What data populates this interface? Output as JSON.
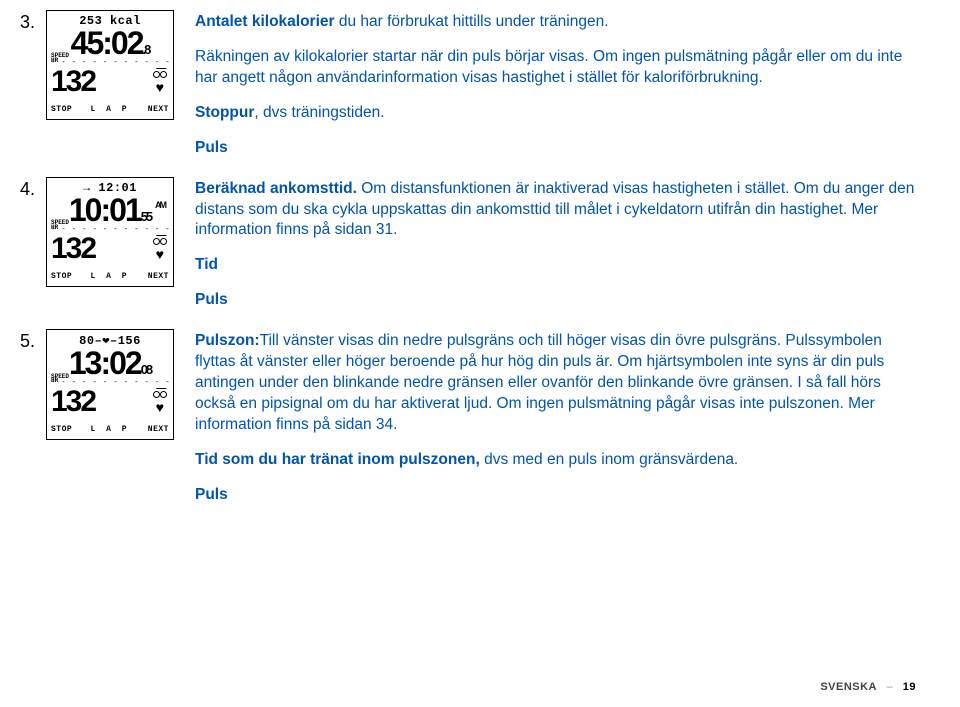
{
  "blocks": [
    {
      "num": "3.",
      "device": {
        "line1": "253 kcal",
        "big": "45:02",
        "bigSub": ".8",
        "hr": "132",
        "bike": true,
        "heart": true,
        "stop": "STOP",
        "lap": "L A P",
        "next": "NEXT",
        "speedhr": "SPEED\nHR"
      },
      "paras": [
        {
          "runs": [
            {
              "t": "Antalet kilokalorier",
              "c": "blue",
              "b": true
            },
            {
              "t": " du har förbrukat hittills under träningen.",
              "c": "blue"
            }
          ]
        },
        {
          "runs": [
            {
              "t": "Räkningen av kilokalorier startar när din puls börjar visas. Om ingen pulsmätning pågår eller om du inte har angett någon användarinformation visas hastighet i stället för kaloriförbrukning.",
              "c": "blue"
            }
          ]
        },
        {
          "runs": [
            {
              "t": "Stoppur",
              "c": "blue",
              "b": true
            },
            {
              "t": ", dvs träningstiden.",
              "c": "blue"
            }
          ]
        },
        {
          "runs": [
            {
              "t": "Puls",
              "c": "blue",
              "b": true
            }
          ]
        }
      ]
    },
    {
      "num": "4.",
      "device": {
        "line1": "→ 12:01",
        "big": "10:01",
        "bigSub": "55",
        "sup": "AM",
        "hr": "132",
        "bike": true,
        "heart": true,
        "stop": "STOP",
        "lap": "L A P",
        "next": "NEXT",
        "speedhr": "SPEED\nHR"
      },
      "paras": [
        {
          "runs": [
            {
              "t": "Beräknad ankomsttid.",
              "c": "blue",
              "b": true
            },
            {
              "t": " Om distansfunktionen är inaktiverad visas hastigheten i stället. Om du anger den distans som du ska cykla uppskattas din ankomsttid till målet i cykeldatorn utifrån din hastighet. Mer information finns på sidan 31.",
              "c": "blue"
            }
          ]
        },
        {
          "runs": [
            {
              "t": "Tid",
              "c": "blue",
              "b": true
            }
          ]
        },
        {
          "runs": [
            {
              "t": "Puls",
              "c": "blue",
              "b": true
            }
          ]
        }
      ]
    },
    {
      "num": "5.",
      "device": {
        "line1": "80–❤–156",
        "big": "13:02",
        "bigSub": "08",
        "hr": "132",
        "bike": true,
        "heart": true,
        "stop": "STOP",
        "lap": "L A P",
        "next": "NEXT",
        "speedhr": "SPEED\nHR"
      },
      "paras": [
        {
          "runs": [
            {
              "t": "Pulszon:",
              "c": "blue",
              "b": true
            },
            {
              "t": "Till vänster visas din nedre pulsgräns och till höger visas din övre pulsgräns. Pulssymbolen flyttas åt vänster eller höger beroende på hur hög din puls är. Om hjärtsymbolen inte syns är din puls antingen under den blinkande nedre gränsen eller ovanför den blinkande övre gränsen. I så fall hörs också en pipsignal om du har aktiverat ljud. Om ingen pulsmätning pågår visas inte pulszonen. Mer information finns på sidan 34.",
              "c": "blue"
            }
          ]
        },
        {
          "runs": [
            {
              "t": "Tid som du har tränat inom pulszonen,",
              "c": "blue",
              "b": true
            },
            {
              "t": " dvs med en puls inom gränsvärdena.",
              "c": "blue"
            }
          ]
        },
        {
          "runs": [
            {
              "t": "Puls",
              "c": "blue",
              "b": true
            }
          ]
        }
      ]
    }
  ],
  "footer": {
    "lang": "SVENSKA",
    "page": "19"
  }
}
